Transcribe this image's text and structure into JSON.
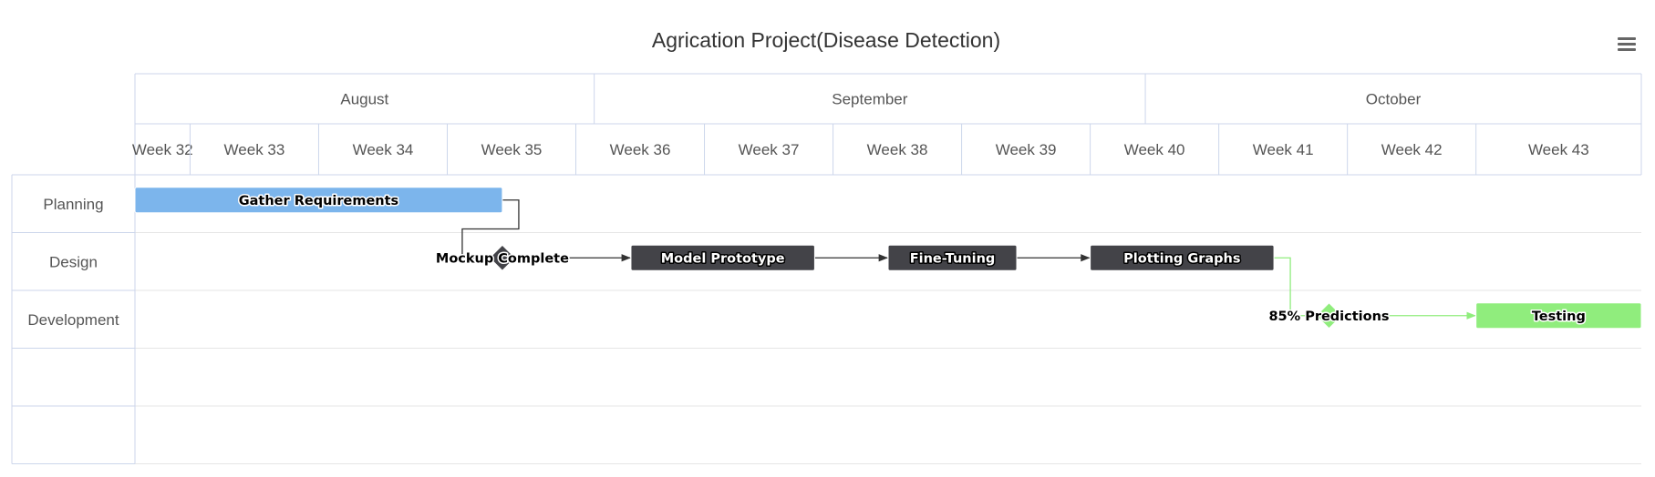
{
  "chart_data": {
    "type": "gantt",
    "title": "Agrication Project(Disease Detection)",
    "x_axis": {
      "range": [
        "2023-08-07",
        "2023-10-28"
      ],
      "months": [
        {
          "label": "August",
          "start": "2023-08-07",
          "end": "2023-09-01"
        },
        {
          "label": "September",
          "start": "2023-09-01",
          "end": "2023-10-01"
        },
        {
          "label": "October",
          "start": "2023-10-01",
          "end": "2023-10-28"
        }
      ],
      "weeks": [
        {
          "label": "Week 32",
          "start": "2023-08-07"
        },
        {
          "label": "Week 33",
          "start": "2023-08-10"
        },
        {
          "label": "Week 34",
          "start": "2023-08-17"
        },
        {
          "label": "Week 35",
          "start": "2023-08-24"
        },
        {
          "label": "Week 36",
          "start": "2023-08-31"
        },
        {
          "label": "Week 37",
          "start": "2023-09-07"
        },
        {
          "label": "Week 38",
          "start": "2023-09-14"
        },
        {
          "label": "Week 39",
          "start": "2023-09-21"
        },
        {
          "label": "Week 40",
          "start": "2023-09-28"
        },
        {
          "label": "Week 41",
          "start": "2023-10-05"
        },
        {
          "label": "Week 42",
          "start": "2023-10-12"
        },
        {
          "label": "Week 43",
          "start": "2023-10-19"
        }
      ]
    },
    "categories": [
      "Planning",
      "Design",
      "Development",
      "",
      ""
    ],
    "tasks": [
      {
        "id": "t1",
        "name": "Gather Requirements",
        "category": 0,
        "start": "2023-08-07",
        "end": "2023-08-27",
        "color": "#7cb5ec",
        "text_color": "#000000",
        "outline": "#ffffff"
      },
      {
        "id": "m1",
        "name": "Mockup Complete",
        "category": 1,
        "date": "2023-08-27",
        "milestone": true,
        "color": "#434348",
        "text_color": "#000000",
        "outline": "#ffffff",
        "depends_on": "t1"
      },
      {
        "id": "t2",
        "name": "Model Prototype",
        "category": 1,
        "start": "2023-09-03",
        "end": "2023-09-13",
        "color": "#434348",
        "text_color": "#ffffff",
        "outline": "#000000",
        "depends_on": "m1"
      },
      {
        "id": "t3",
        "name": "Fine-Tuning",
        "category": 1,
        "start": "2023-09-17",
        "end": "2023-09-24",
        "color": "#434348",
        "text_color": "#ffffff",
        "outline": "#000000",
        "depends_on": "t2"
      },
      {
        "id": "t4",
        "name": "Plotting Graphs",
        "category": 1,
        "start": "2023-09-28",
        "end": "2023-10-08",
        "color": "#434348",
        "text_color": "#ffffff",
        "outline": "#000000",
        "depends_on": "t3"
      },
      {
        "id": "m2",
        "name": "85% Predictions",
        "category": 2,
        "date": "2023-10-11",
        "milestone": true,
        "color": "#90ed7d",
        "text_color": "#000000",
        "outline": "#ffffff",
        "depends_on": "t4"
      },
      {
        "id": "t5",
        "name": "Testing",
        "category": 2,
        "start": "2023-10-19",
        "end": "2023-10-28",
        "color": "#90ed7d",
        "text_color": "#000000",
        "outline": "#ffffff",
        "depends_on": "m2"
      }
    ],
    "grid": true,
    "colors": {
      "grid": "#e6e6e6",
      "axis_line": "#ccd6eb",
      "title": "#333333",
      "label": "#555555",
      "menu_icon": "#666666"
    }
  },
  "icons": {
    "menu": "hamburger-menu-icon"
  }
}
